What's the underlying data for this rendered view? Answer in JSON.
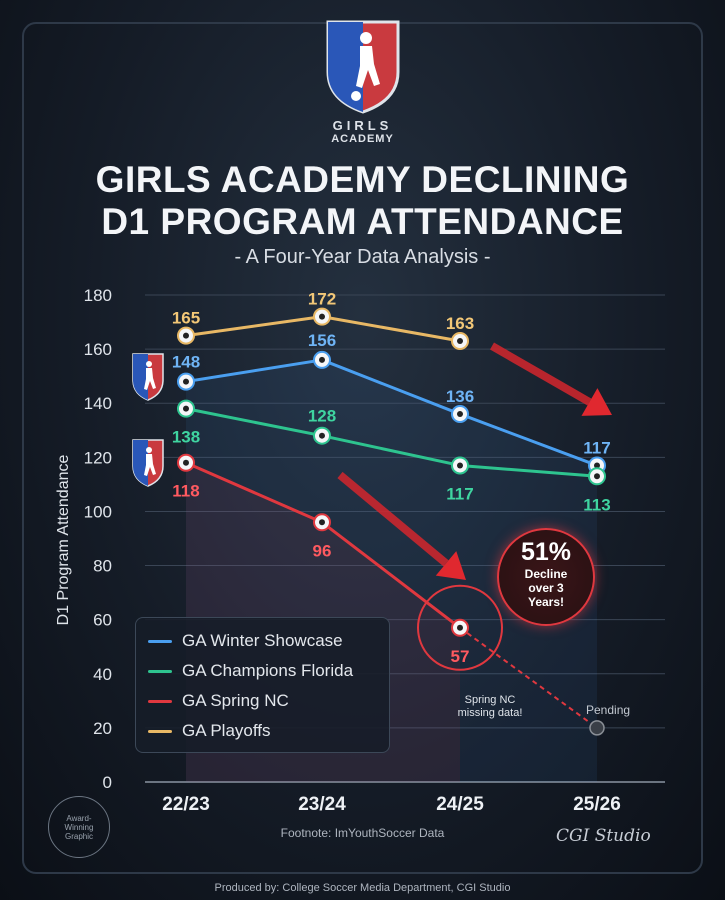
{
  "brand": {
    "line1": "GIRLS",
    "line2": "ACADEMY"
  },
  "title": {
    "line1": "GIRLS ACADEMY DECLINING",
    "line2": "D1 PROGRAM ATTENDANCE"
  },
  "subtitle": "- A Four-Year Data Analysis -",
  "chart_data": {
    "type": "line",
    "ylabel": "D1 Program Attendance",
    "xlabel": "",
    "ylim": [
      0,
      180
    ],
    "y_ticks": [
      0,
      20,
      40,
      60,
      80,
      100,
      120,
      140,
      160,
      180
    ],
    "categories": [
      "22/23",
      "23/24",
      "24/25",
      "25/26"
    ],
    "series": [
      {
        "name": "GA Winter Showcase",
        "color": "#4a9ff0",
        "values": [
          148,
          156,
          136,
          117
        ]
      },
      {
        "name": "GA Champions Florida",
        "color": "#2ec48f",
        "values": [
          138,
          128,
          117,
          113
        ]
      },
      {
        "name": "GA Spring NC",
        "color": "#e0383f",
        "values": [
          118,
          96,
          57,
          null
        ],
        "projected": 20
      },
      {
        "name": "GA Playoffs",
        "color": "#e8b865",
        "values": [
          165,
          172,
          163,
          null
        ]
      }
    ],
    "annotations": {
      "decline_pct": "51%",
      "decline_text": [
        "Decline",
        "over 3",
        "Years!"
      ],
      "missing_note": [
        "Spring NC",
        "missing data!"
      ],
      "pending": "Pending"
    }
  },
  "badge": [
    "Award-",
    "Winning",
    "Graphic"
  ],
  "footnote": "Footnote: ImYouthSoccer Data",
  "studio": "CGI Studio",
  "produced": "Produced by: College Soccer Media Department, CGI Studio",
  "colors": {
    "blue": "#4a9ff0",
    "green": "#2ec48f",
    "red": "#e0383f",
    "gold": "#e8b865"
  }
}
